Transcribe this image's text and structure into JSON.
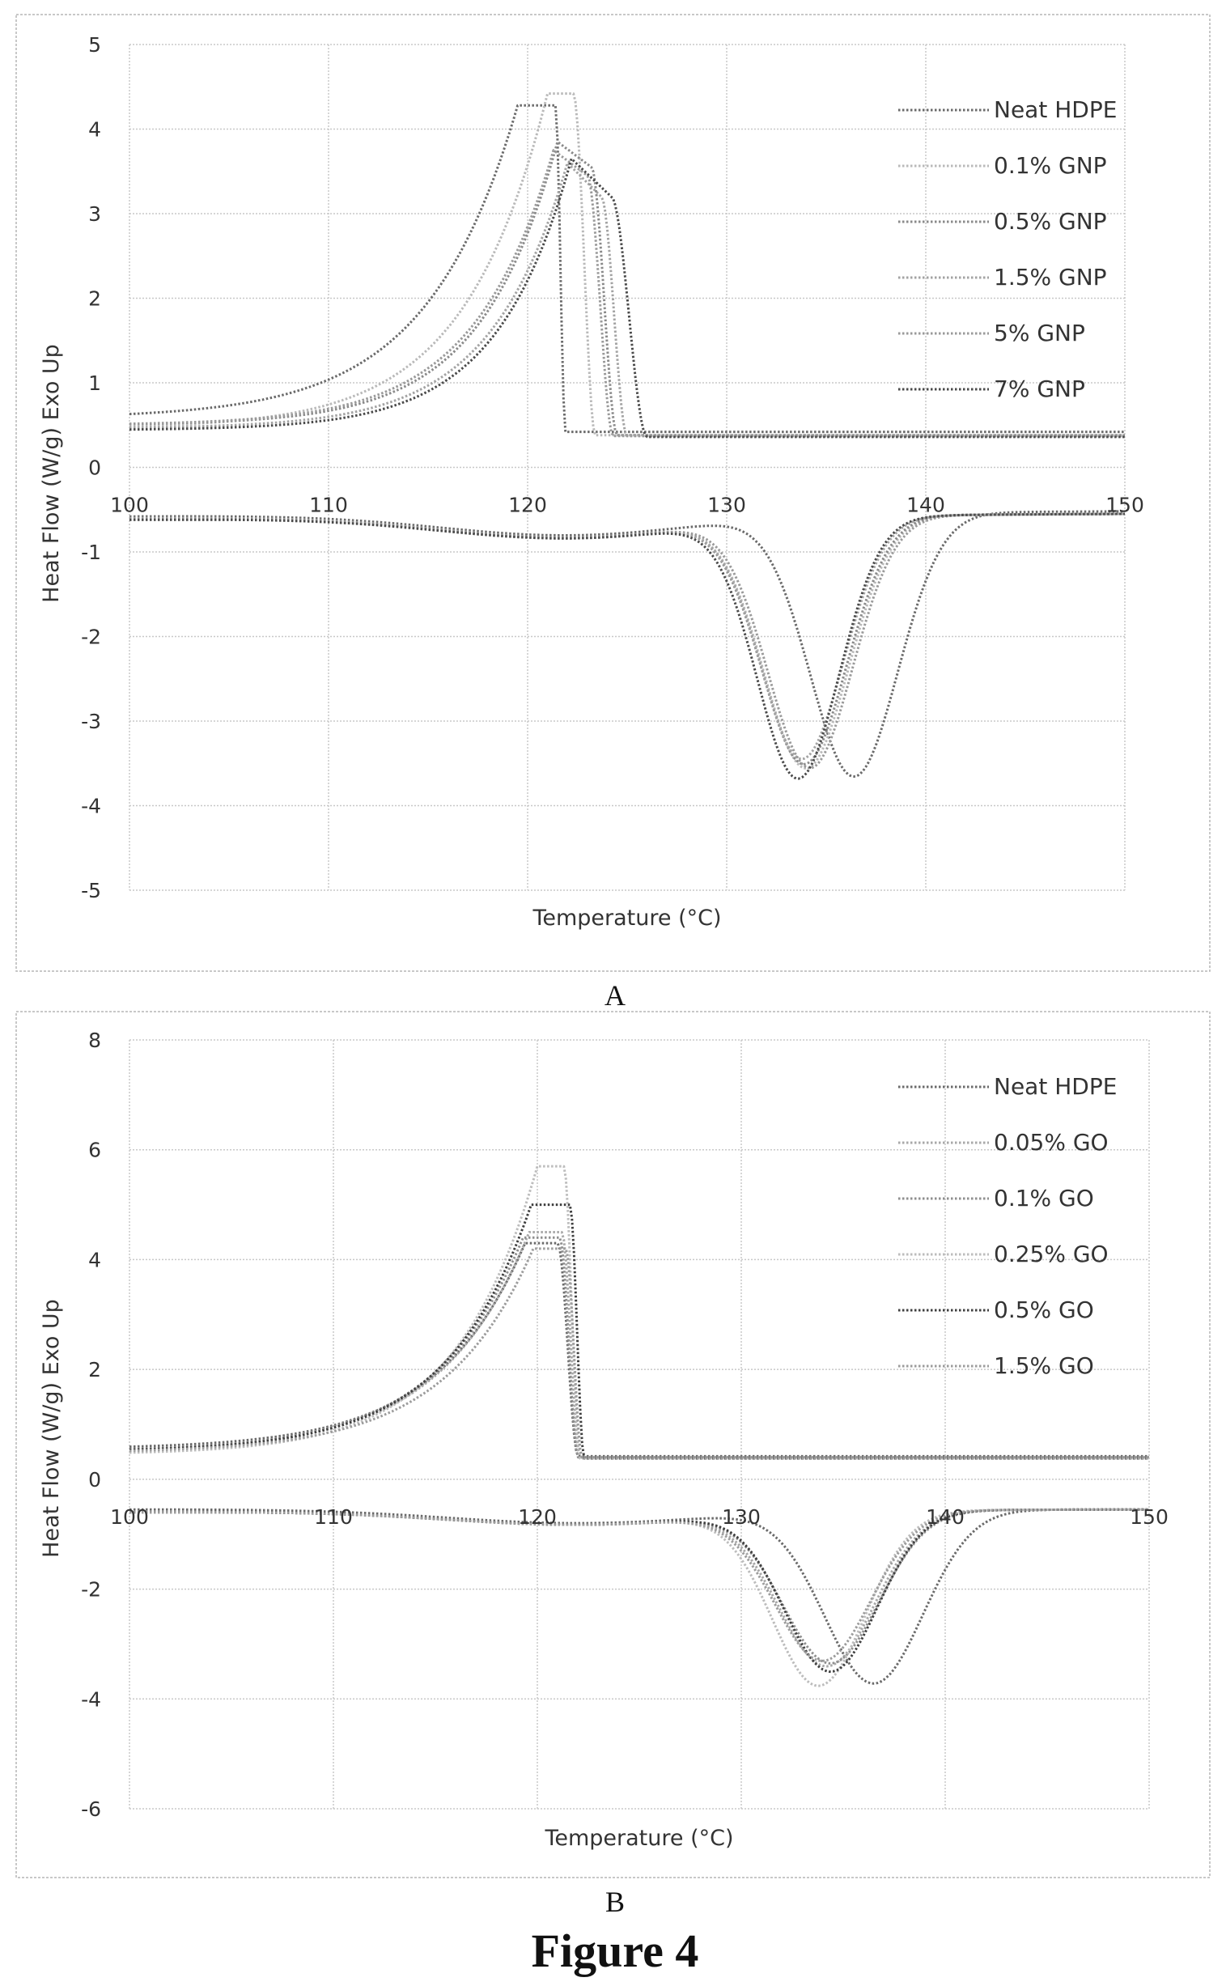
{
  "figure_title": "Figure 4",
  "chart_data": [
    {
      "type": "line",
      "panel_label": "A",
      "xlabel": "Temperature (°C)",
      "ylabel": "Heat Flow (W/g) Exo Up",
      "xlim": [
        100,
        150
      ],
      "ylim": [
        -5,
        5
      ],
      "x_ticks": [
        100,
        110,
        120,
        130,
        140,
        150
      ],
      "y_ticks": [
        5,
        4,
        3,
        2,
        1,
        0,
        -1,
        -2,
        -3,
        -4,
        -5
      ],
      "grid": true,
      "legend_position": "top-right",
      "series": [
        {
          "name": "Neat HDPE",
          "color": "#6a6a6a",
          "cooling": {
            "base_start": 0.58,
            "onset": 121.4,
            "peak_x": 119.5,
            "peak_y": 4.28,
            "end_x": 121.9,
            "tail": 0.42,
            "k": 0.22,
            "plateau": 0.0
          },
          "heating": {
            "start": -0.58,
            "peak_x": 136.4,
            "peak_y": -3.68,
            "width": 3.1,
            "end": -0.52
          }
        },
        {
          "name": "0.1% GNP",
          "color": "#b9b9b9",
          "cooling": {
            "base_start": 0.46,
            "onset": 122.3,
            "peak_x": 121.0,
            "peak_y": 4.42,
            "end_x": 123.4,
            "tail": 0.38,
            "k": 0.24,
            "plateau": 0.0
          },
          "heating": {
            "start": -0.6,
            "peak_x": 134.0,
            "peak_y": -3.55,
            "width": 3.0,
            "end": -0.55
          }
        },
        {
          "name": "0.5% GNP",
          "color": "#8a8a8a",
          "cooling": {
            "base_start": 0.5,
            "onset": 123.2,
            "peak_x": 121.5,
            "peak_y": 3.85,
            "end_x": 124.5,
            "tail": 0.38,
            "k": 0.26,
            "plateau": 0.6
          },
          "heating": {
            "start": -0.6,
            "peak_x": 133.9,
            "peak_y": -3.5,
            "width": 3.0,
            "end": -0.55
          }
        },
        {
          "name": "1.5% GNP",
          "color": "#a3a3a3",
          "cooling": {
            "base_start": 0.46,
            "onset": 123.7,
            "peak_x": 122.0,
            "peak_y": 3.6,
            "end_x": 125.0,
            "tail": 0.37,
            "k": 0.26,
            "plateau": 0.8
          },
          "heating": {
            "start": -0.62,
            "peak_x": 133.8,
            "peak_y": -3.45,
            "width": 2.9,
            "end": -0.55
          }
        },
        {
          "name": "5% GNP",
          "color": "#9a9a9a",
          "cooling": {
            "base_start": 0.5,
            "onset": 123.0,
            "peak_x": 121.3,
            "peak_y": 3.75,
            "end_x": 124.3,
            "tail": 0.37,
            "k": 0.25,
            "plateau": 0.6
          },
          "heating": {
            "start": -0.6,
            "peak_x": 134.2,
            "peak_y": -3.55,
            "width": 3.0,
            "end": -0.55
          }
        },
        {
          "name": "7% GNP",
          "color": "#4a4a4a",
          "cooling": {
            "base_start": 0.44,
            "onset": 124.2,
            "peak_x": 122.2,
            "peak_y": 3.65,
            "end_x": 126.0,
            "tail": 0.36,
            "k": 0.27,
            "plateau": 0.9
          },
          "heating": {
            "start": -0.62,
            "peak_x": 133.6,
            "peak_y": -3.68,
            "width": 2.9,
            "end": -0.55
          }
        }
      ]
    },
    {
      "type": "line",
      "panel_label": "B",
      "xlabel": "Temperature (°C)",
      "ylabel": "Heat Flow (W/g) Exo Up",
      "xlim": [
        100,
        150
      ],
      "ylim": [
        -6,
        8
      ],
      "x_ticks": [
        100,
        110,
        120,
        130,
        140,
        150
      ],
      "y_ticks": [
        8,
        6,
        4,
        2,
        0,
        -2,
        -4,
        -6
      ],
      "grid": true,
      "legend_position": "top-right",
      "series": [
        {
          "name": "Neat HDPE",
          "color": "#6a6a6a",
          "cooling": {
            "base_start": 0.55,
            "onset": 121.0,
            "peak_x": 119.4,
            "peak_y": 4.3,
            "end_x": 122.0,
            "tail": 0.42,
            "k": 0.23,
            "plateau": 0.0
          },
          "heating": {
            "start": -0.55,
            "peak_x": 136.5,
            "peak_y": -3.7,
            "width": 3.4,
            "end": -0.55
          }
        },
        {
          "name": "0.05% GO",
          "color": "#a8a8a8",
          "cooling": {
            "base_start": 0.5,
            "onset": 121.2,
            "peak_x": 119.6,
            "peak_y": 4.5,
            "end_x": 122.1,
            "tail": 0.4,
            "k": 0.23,
            "plateau": 0.0
          },
          "heating": {
            "start": -0.6,
            "peak_x": 134.2,
            "peak_y": -3.4,
            "width": 3.3,
            "end": -0.55
          }
        },
        {
          "name": "0.1% GO",
          "color": "#8f8f8f",
          "cooling": {
            "base_start": 0.5,
            "onset": 121.1,
            "peak_x": 119.3,
            "peak_y": 4.4,
            "end_x": 122.0,
            "tail": 0.4,
            "k": 0.23,
            "plateau": 0.0
          },
          "heating": {
            "start": -0.6,
            "peak_x": 134.4,
            "peak_y": -3.35,
            "width": 3.3,
            "end": -0.55
          }
        },
        {
          "name": "0.25% GO",
          "color": "#bcbcbc",
          "cooling": {
            "base_start": 0.45,
            "onset": 121.3,
            "peak_x": 120.0,
            "peak_y": 5.7,
            "end_x": 122.1,
            "tail": 0.38,
            "k": 0.25,
            "plateau": 0.0
          },
          "heating": {
            "start": -0.6,
            "peak_x": 133.8,
            "peak_y": -3.75,
            "width": 3.2,
            "end": -0.55
          }
        },
        {
          "name": "0.5% GO",
          "color": "#3f3f3f",
          "cooling": {
            "base_start": 0.5,
            "onset": 121.6,
            "peak_x": 119.7,
            "peak_y": 5.0,
            "end_x": 122.3,
            "tail": 0.38,
            "k": 0.24,
            "plateau": 0.0
          },
          "heating": {
            "start": -0.6,
            "peak_x": 134.4,
            "peak_y": -3.5,
            "width": 3.2,
            "end": -0.55
          }
        },
        {
          "name": "1.5% GO",
          "color": "#9c9c9c",
          "cooling": {
            "base_start": 0.48,
            "onset": 121.4,
            "peak_x": 119.8,
            "peak_y": 4.2,
            "end_x": 122.2,
            "tail": 0.38,
            "k": 0.23,
            "plateau": 0.0
          },
          "heating": {
            "start": -0.6,
            "peak_x": 134.0,
            "peak_y": -3.3,
            "width": 3.3,
            "end": -0.55
          }
        }
      ]
    }
  ]
}
